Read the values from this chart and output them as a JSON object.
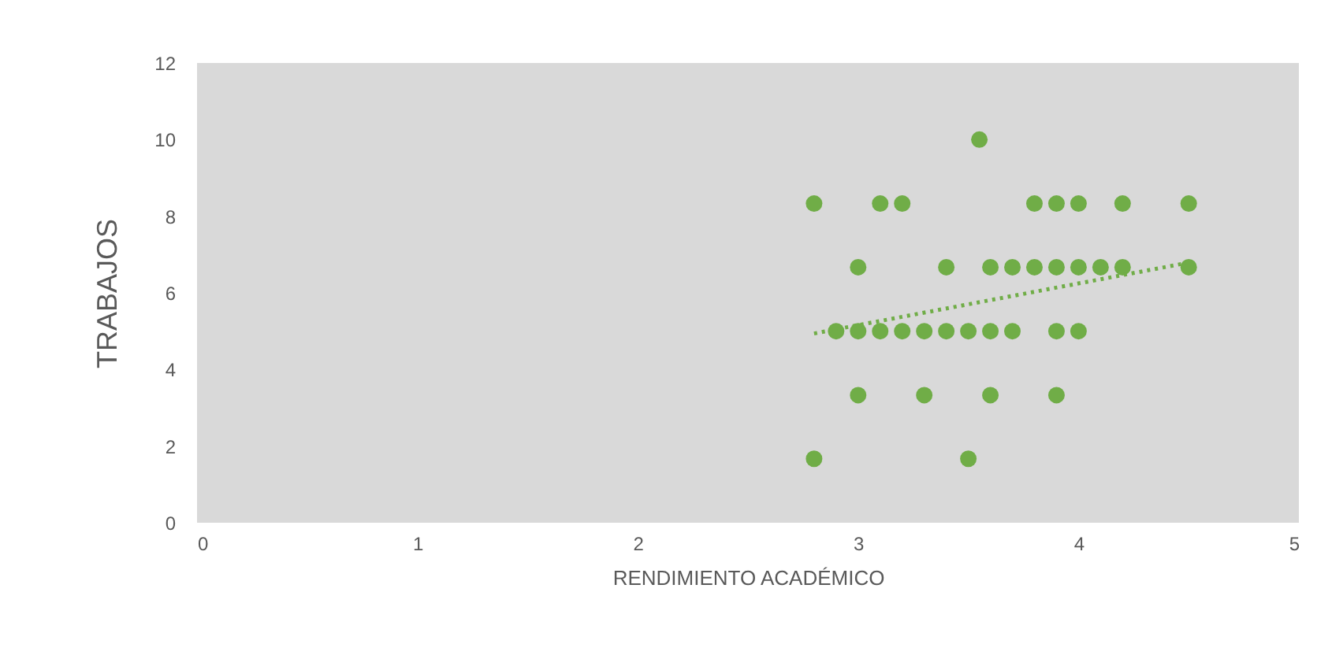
{
  "chart_data": {
    "type": "scatter",
    "xlabel": "RENDIMIENTO ACADÉMICO",
    "ylabel": "TRABAJOS",
    "xlim": [
      0,
      5
    ],
    "xticks": [
      0,
      1,
      2,
      3,
      4,
      5
    ],
    "ylim": [
      0,
      12
    ],
    "yticks": [
      0,
      2,
      4,
      6,
      8,
      10,
      12
    ],
    "grid": false,
    "marker": "circle",
    "series": [
      {
        "color": "#70ad47",
        "x": [
          3.55,
          2.8,
          3.1,
          3.2,
          3.8,
          3.9,
          4.0,
          4.2,
          4.5,
          3.0,
          3.4,
          3.6,
          3.7,
          3.8,
          3.9,
          4.0,
          4.1,
          4.2,
          4.5,
          2.9,
          3.0,
          3.1,
          3.2,
          3.3,
          3.4,
          3.5,
          3.6,
          3.7,
          3.9,
          4.0,
          3.0,
          3.3,
          3.6,
          3.9,
          2.8,
          3.5
        ],
        "values": [
          10,
          8.33,
          8.33,
          8.33,
          8.33,
          8.33,
          8.33,
          8.33,
          8.33,
          6.67,
          6.67,
          6.67,
          6.67,
          6.67,
          6.67,
          6.67,
          6.67,
          6.67,
          6.67,
          5,
          5,
          5,
          5,
          5,
          5,
          5,
          5,
          5,
          5,
          5,
          3.33,
          3.33,
          3.33,
          3.33,
          1.67,
          1.67
        ]
      },
      {
        "type": "line",
        "color": "#70ad47",
        "line_style": "dotted",
        "marker": "none",
        "x": [
          2.8,
          4.5
        ],
        "values": [
          4.94,
          6.79
        ]
      }
    ]
  }
}
